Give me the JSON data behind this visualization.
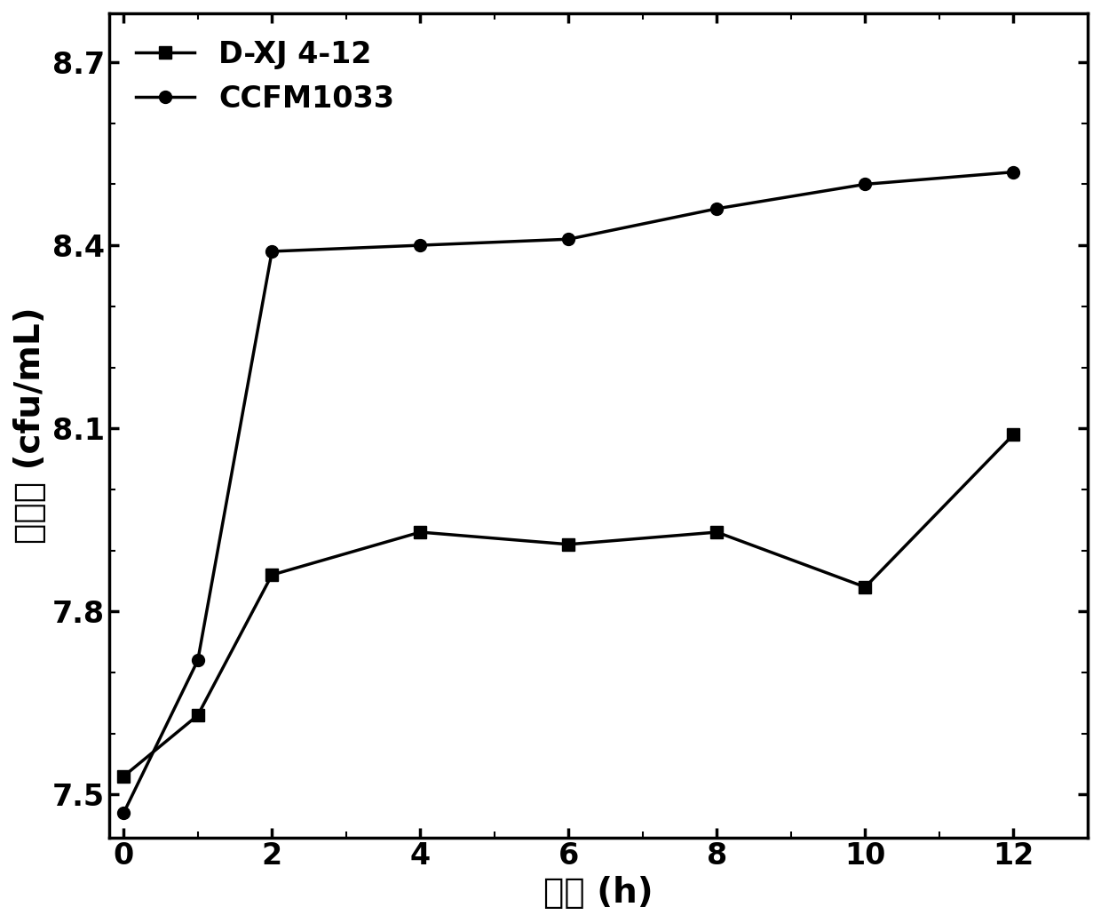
{
  "x": [
    0,
    1,
    2,
    4,
    6,
    8,
    10,
    12
  ],
  "dxj_y": [
    7.53,
    7.63,
    7.86,
    7.93,
    7.91,
    7.93,
    7.84,
    8.09
  ],
  "ccfm_y": [
    7.47,
    7.72,
    8.39,
    8.4,
    8.41,
    8.46,
    8.5,
    8.52
  ],
  "xlabel": "时间 (h)",
  "ylabel": "活菌数 (cfu/mL)",
  "legend_dxj": "D-XJ 4-12",
  "legend_ccfm": "CCFM1033",
  "xlim": [
    -0.2,
    13.0
  ],
  "ylim": [
    7.43,
    8.78
  ],
  "yticks": [
    7.5,
    7.8,
    8.1,
    8.4,
    8.7
  ],
  "xticks": [
    0,
    2,
    4,
    6,
    8,
    10,
    12
  ],
  "line_color": "#000000",
  "linewidth": 2.5,
  "markersize": 10,
  "tick_fontsize": 24,
  "label_fontsize": 28,
  "legend_fontsize": 24,
  "background_color": "#ffffff"
}
